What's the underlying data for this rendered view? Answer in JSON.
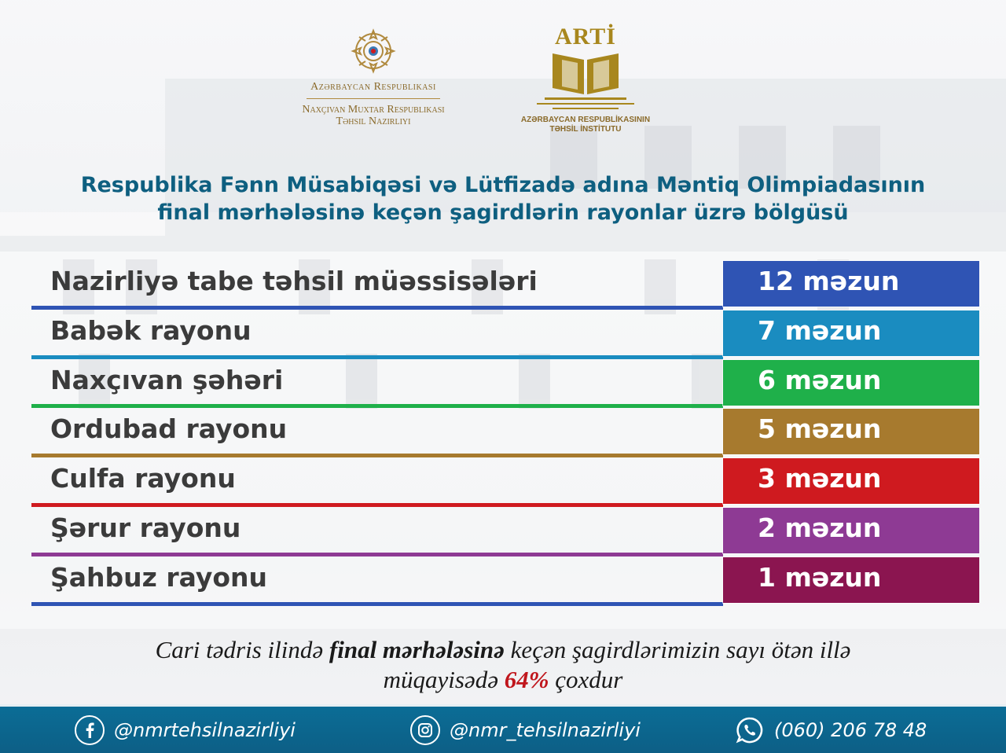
{
  "header": {
    "gov": {
      "line1": "Azərbaycan Respublikası",
      "line2": "Naxçıvan Muxtar Respublikası",
      "line3": "Təhsil Nazirliyi"
    },
    "arti": {
      "title": "ARTİ",
      "sub1": "AZƏRBAYCAN RESPUBLİKASININ",
      "sub2": "TƏHSİL İNSTİTUTU"
    }
  },
  "title": {
    "line1": "Respublika Fənn Müsabiqəsi və Lütfizadə adına Məntiq Olimpiadasının",
    "line2": "final mərhələsinə keçən şagirdlərin rayonlar üzrə bölgüsü"
  },
  "rows": [
    {
      "label": "Nazirliyə tabe təhsil müəssisələri",
      "value": "12 məzun",
      "color": "#2f54b4"
    },
    {
      "label": "Babək rayonu",
      "value": "7 məzun",
      "color": "#1a8cc0"
    },
    {
      "label": "Naxçıvan şəhəri",
      "value": "6 məzun",
      "color": "#1fb04a"
    },
    {
      "label": "Ordubad rayonu",
      "value": "5 məzun",
      "color": "#a77a2e"
    },
    {
      "label": "Culfa rayonu",
      "value": "3 məzun",
      "color": "#cf1a1f"
    },
    {
      "label": "Şərur rayonu",
      "value": "2 məzun",
      "color": "#8e3a94"
    },
    {
      "label": "Şahbuz rayonu",
      "value": "1 məzun",
      "color": "#8b1550"
    }
  ],
  "caption": {
    "part1": "Cari tədris ilində ",
    "bold": "final mərhələsinə",
    "part2": " keçən şagirdlərimizin sayı ötən illə",
    "part3": "müqayisədə ",
    "pct": "64%",
    "part4": " çoxdur"
  },
  "footer": {
    "facebook": "@nmrtehsilnazirliyi",
    "instagram": "@nmr_tehsilnazirliyi",
    "phone": "(060) 206 78 48"
  }
}
